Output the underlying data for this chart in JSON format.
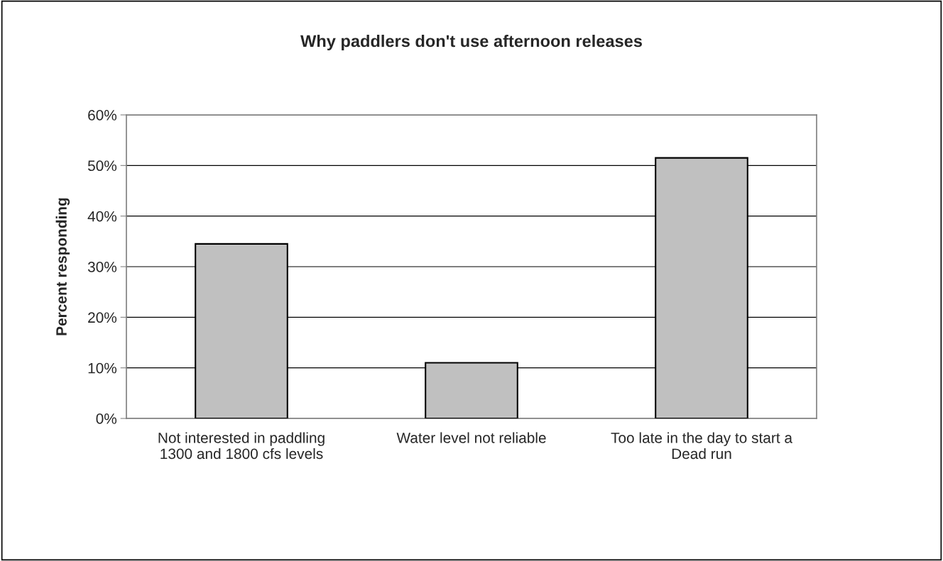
{
  "chart_data": {
    "type": "bar",
    "title": "Why paddlers don't use afternoon releases",
    "ylabel": "Percent responding",
    "categories": [
      "Not interested in paddling\n1300 and 1800 cfs levels",
      "Water level not reliable",
      "Too late in the day to start a\nDead run"
    ],
    "values": [
      34.5,
      11,
      51.5
    ],
    "color": "#c0c0c0",
    "ylim": [
      0,
      60
    ],
    "yticks": [
      {
        "value": 0,
        "label": "0%"
      },
      {
        "value": 10,
        "label": "10%"
      },
      {
        "value": 20,
        "label": "20%"
      },
      {
        "value": 30,
        "label": "30%"
      },
      {
        "value": 40,
        "label": "40%"
      },
      {
        "value": 50,
        "label": "50%"
      },
      {
        "value": 60,
        "label": "60%"
      }
    ],
    "grid": "y",
    "legend": false
  }
}
